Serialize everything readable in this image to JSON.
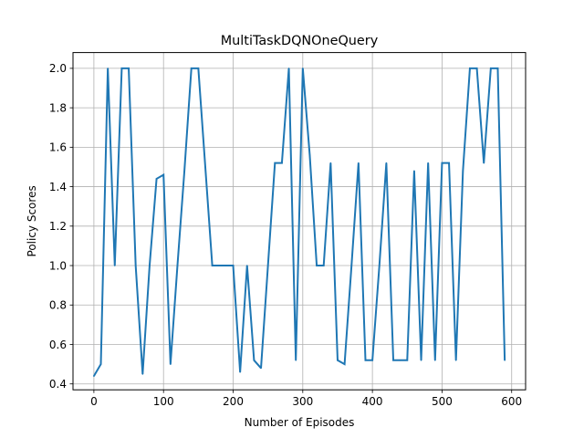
{
  "chart_data": {
    "type": "line",
    "title": "MultiTaskDQNOneQuery",
    "xlabel": "Number of Episodes",
    "ylabel": "Policy Scores",
    "xlim": [
      -30,
      620
    ],
    "ylim": [
      0.37,
      2.08
    ],
    "xticks": [
      0,
      100,
      200,
      300,
      400,
      500,
      600
    ],
    "yticks": [
      0.4,
      0.6,
      0.8,
      1.0,
      1.2,
      1.4,
      1.6,
      1.8,
      2.0
    ],
    "xtick_labels": [
      "0",
      "100",
      "200",
      "300",
      "400",
      "500",
      "600"
    ],
    "ytick_labels": [
      "0.4",
      "0.6",
      "0.8",
      "1.0",
      "1.2",
      "1.4",
      "1.6",
      "1.8",
      "2.0"
    ],
    "grid": true,
    "legend": "none",
    "series": [
      {
        "color": "#1f77b4",
        "x": [
          0,
          10,
          20,
          30,
          40,
          50,
          60,
          70,
          80,
          90,
          100,
          110,
          120,
          130,
          140,
          150,
          160,
          170,
          180,
          190,
          200,
          210,
          220,
          230,
          240,
          250,
          260,
          270,
          280,
          290,
          300,
          310,
          320,
          330,
          340,
          350,
          360,
          370,
          380,
          390,
          400,
          410,
          420,
          430,
          440,
          450,
          460,
          470,
          480,
          490,
          500,
          510,
          520,
          530,
          540,
          550,
          560,
          570,
          580,
          590
        ],
        "y": [
          0.44,
          0.5,
          2.0,
          1.0,
          2.0,
          2.0,
          1.0,
          0.45,
          1.0,
          1.44,
          1.46,
          0.5,
          1.0,
          1.48,
          2.0,
          2.0,
          1.5,
          1.0,
          1.0,
          1.0,
          1.0,
          0.46,
          1.0,
          0.52,
          0.48,
          1.0,
          1.52,
          1.52,
          2.0,
          0.52,
          2.0,
          1.56,
          1.0,
          1.0,
          1.52,
          0.52,
          0.5,
          1.0,
          1.52,
          0.52,
          0.52,
          1.0,
          1.52,
          0.52,
          0.52,
          0.52,
          1.48,
          0.52,
          1.52,
          0.52,
          1.52,
          1.52,
          0.52,
          1.48,
          2.0,
          2.0,
          1.52,
          2.0,
          2.0,
          0.52
        ]
      }
    ]
  }
}
